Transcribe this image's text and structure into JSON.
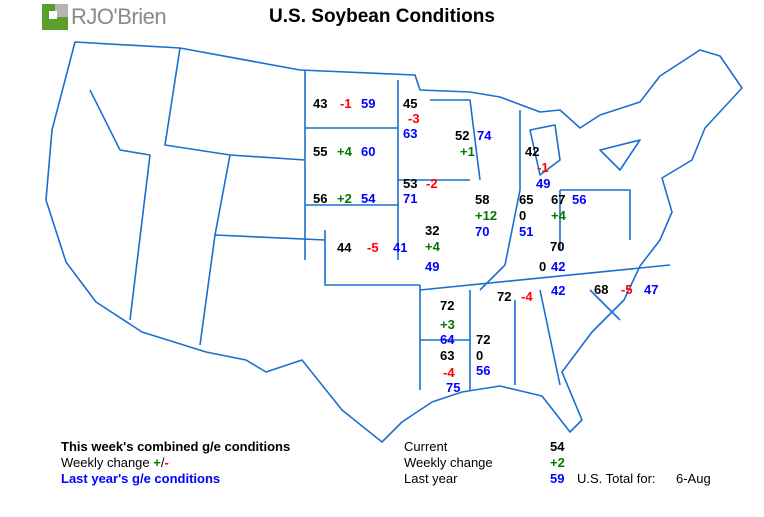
{
  "title": "U.S. Soybean Conditions",
  "logo": {
    "text": "RJO'Brien",
    "brand_color": "#5aa02c"
  },
  "colors": {
    "current": "#000000",
    "negative_change": "#ff0000",
    "positive_change": "#007a00",
    "last_year": "#0000ff",
    "map_lines": "#1a6fd1"
  },
  "states": [
    {
      "state": "ND",
      "current": "43",
      "change": "-1",
      "last_year": "59"
    },
    {
      "state": "MN",
      "current": "45",
      "change": "-3",
      "last_year": "63"
    },
    {
      "state": "SD",
      "current": "55",
      "change": "+4",
      "last_year": "60"
    },
    {
      "state": "WI",
      "current": "52",
      "change": "+1",
      "last_year": "74"
    },
    {
      "state": "MI",
      "current": "42",
      "change": "-1",
      "last_year": "49"
    },
    {
      "state": "NE",
      "current": "56",
      "change": "+2",
      "last_year": "54"
    },
    {
      "state": "IA",
      "current": "53",
      "change": "-2",
      "last_year": "71"
    },
    {
      "state": "IL",
      "current": "58",
      "change": "+12",
      "last_year": "70"
    },
    {
      "state": "IN",
      "current": "65",
      "change": "0",
      "last_year": "51"
    },
    {
      "state": "OH",
      "current": "67",
      "change": "+4",
      "last_year": "56"
    },
    {
      "state": "KS",
      "current": "44",
      "change": "-5",
      "last_year": "41"
    },
    {
      "state": "MO",
      "current": "32",
      "change": "+4",
      "last_year": "49"
    },
    {
      "state": "KY",
      "current": "70",
      "change": "0",
      "last_year": "42"
    },
    {
      "state": "TN",
      "current": "72",
      "change": "-4",
      "last_year": "42"
    },
    {
      "state": "NC",
      "current": "68",
      "change": "-5",
      "last_year": "47"
    },
    {
      "state": "AR",
      "current": "72",
      "change": "+3",
      "last_year": "64"
    },
    {
      "state": "MS",
      "current": "72",
      "change": "0",
      "last_year": "56"
    },
    {
      "state": "LA",
      "current": "63",
      "change": "-4",
      "last_year": "75"
    }
  ],
  "legend": {
    "line1": "This week's combined g/e conditions",
    "line2_prefix": "Weekly change ",
    "line2_plus": "+",
    "line2_slash": "/",
    "line2_minus": "-",
    "line3": "Last year's g/e conditions"
  },
  "totals": {
    "current_label": "Current",
    "current_value": "54",
    "change_label": "Weekly change",
    "change_value": "+2",
    "last_year_label": "Last year",
    "last_year_value": "59",
    "total_label": "U.S. Total for:",
    "date": "6-Aug"
  }
}
